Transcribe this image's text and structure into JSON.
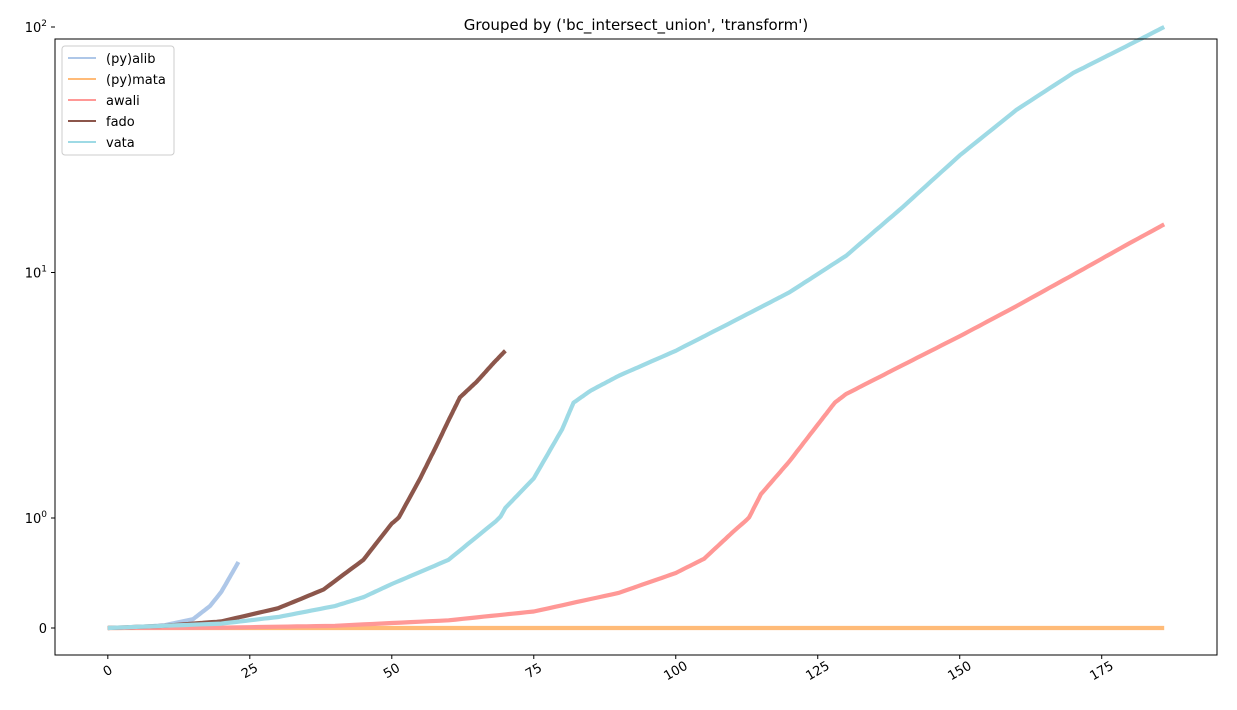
{
  "chart_data": {
    "type": "line",
    "title": "Grouped by ('bc_intersect_union', 'transform')",
    "xlabel": "",
    "ylabel": "",
    "x_scale": "linear",
    "y_scale": "symlog",
    "xlim": [
      -9.3,
      195.3
    ],
    "x_ticks": [
      0,
      25,
      50,
      75,
      100,
      125,
      150,
      175
    ],
    "y_ticks": [
      {
        "value": 0,
        "base": "0",
        "exp": ""
      },
      {
        "value": 1,
        "base": "10",
        "exp": "0"
      },
      {
        "value": 10,
        "base": "10",
        "exp": "1"
      },
      {
        "value": 100,
        "base": "10",
        "exp": "2"
      }
    ],
    "legend": {
      "position": "top-left"
    },
    "series": [
      {
        "name": "(py)alib",
        "color": "#aec7e8",
        "x": [
          0,
          5,
          10,
          15,
          18,
          20,
          23
        ],
        "y": [
          0,
          0.006,
          0.025,
          0.08,
          0.2,
          0.33,
          0.6
        ]
      },
      {
        "name": "(py)mata",
        "color": "#ffbb78",
        "x": [
          0,
          186
        ],
        "y": [
          0,
          0
        ]
      },
      {
        "name": "awali",
        "color": "#ff9896",
        "x": [
          0,
          20,
          40,
          60,
          75,
          90,
          100,
          105,
          110,
          115,
          120,
          125,
          128,
          130,
          140,
          150,
          160,
          170,
          180,
          186
        ],
        "y": [
          0,
          0.003,
          0.02,
          0.07,
          0.15,
          0.32,
          0.5,
          0.63,
          0.87,
          1.25,
          1.7,
          2.4,
          2.95,
          3.2,
          4.2,
          5.5,
          7.3,
          9.8,
          13.2,
          15.7
        ]
      },
      {
        "name": "fado",
        "color": "#8c564b",
        "x": [
          0,
          10,
          20,
          30,
          38,
          45,
          50,
          55,
          58,
          60,
          62,
          65,
          68,
          70
        ],
        "y": [
          0,
          0.02,
          0.06,
          0.18,
          0.35,
          0.62,
          0.95,
          1.45,
          2.0,
          2.5,
          3.1,
          3.6,
          4.3,
          4.8
        ]
      },
      {
        "name": "vata",
        "color": "#9edae5",
        "x": [
          0,
          20,
          30,
          40,
          45,
          50,
          60,
          70,
          75,
          80,
          82,
          85,
          90,
          100,
          110,
          120,
          130,
          140,
          150,
          160,
          170,
          180,
          186
        ],
        "y": [
          0,
          0.04,
          0.1,
          0.2,
          0.28,
          0.4,
          0.62,
          1.1,
          1.45,
          2.3,
          2.95,
          3.3,
          3.8,
          4.8,
          6.3,
          8.3,
          11.7,
          18.5,
          30,
          46,
          65,
          85,
          100
        ]
      }
    ]
  }
}
